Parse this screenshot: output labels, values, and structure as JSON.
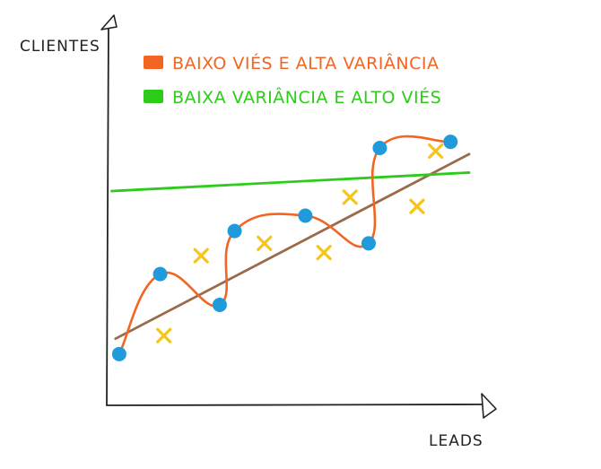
{
  "chart_data": {
    "type": "scatter",
    "xlabel": "LEADS",
    "ylabel": "CLIENTES",
    "grid": false,
    "legend_position": "top-left",
    "xlim": [
      0,
      100
    ],
    "ylim": [
      0,
      100
    ],
    "legend": [
      {
        "label": "BAIXO VIÉS E ALTA VARIÂNCIA",
        "color": "#F26522"
      },
      {
        "label": "BAIXA VARIÂNCIA E ALTO VIÉS",
        "color": "#2ECC1A"
      }
    ],
    "series": [
      {
        "marker": "circle",
        "color": "#1F9BDB",
        "x": [
          6,
          17,
          33,
          37,
          56,
          73,
          76,
          95
        ],
        "y": [
          19,
          45,
          35,
          59,
          64,
          55,
          86,
          88
        ]
      },
      {
        "marker": "cross",
        "color": "#F5C518",
        "x": [
          18,
          28,
          45,
          61,
          68,
          86,
          91
        ],
        "y": [
          25,
          51,
          55,
          52,
          70,
          67,
          85
        ]
      }
    ],
    "lines": [
      {
        "kind": "fit",
        "color": "#F26522",
        "x": [
          6,
          17,
          33,
          37,
          56,
          73,
          76,
          95
        ],
        "y": [
          19,
          45,
          35,
          59,
          64,
          55,
          86,
          88
        ]
      },
      {
        "kind": "trend",
        "color": "#2ECC1A",
        "x": [
          4,
          100
        ],
        "y": [
          72,
          78
        ]
      },
      {
        "kind": "trend",
        "color": "#9B6A4A",
        "x": [
          5,
          100
        ],
        "y": [
          24,
          84
        ]
      }
    ]
  }
}
